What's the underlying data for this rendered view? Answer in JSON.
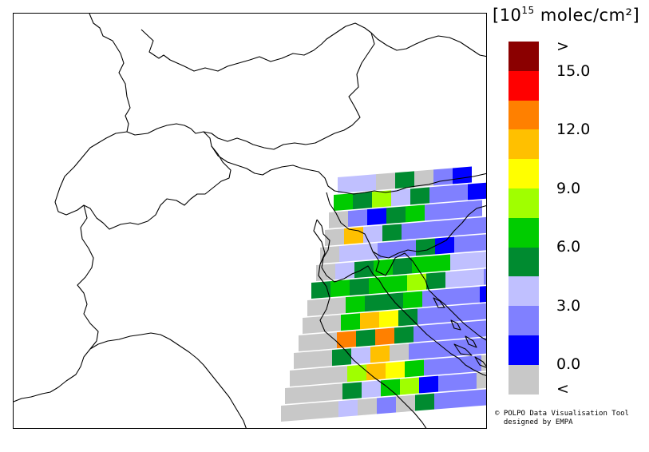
{
  "legend": {
    "unit_base": "[10",
    "unit_exp": "15",
    "unit_rest": " molec/cm²]",
    "labels": [
      ">",
      "15.0",
      "12.0",
      "9.0",
      "6.0",
      "3.0",
      "0.0",
      "<"
    ],
    "colors_top_to_bottom": [
      "#8b0000",
      "#ff0000",
      "#ff8000",
      "#ffc000",
      "#ffff00",
      "#a0ff00",
      "#00cc00",
      "#008b30",
      "#c0c0ff",
      "#8080ff",
      "#0000ff",
      "#c8c8c8"
    ]
  },
  "credit": {
    "line1": "© POLPO Data Visualisation Tool",
    "line2": "  designed by EMPA"
  },
  "map": {
    "region": "Alpine region / Northern Italy",
    "pixel_color_codes": {
      "G": "#c8c8c8",
      "B": "#0000ff",
      "b": "#8080ff",
      "l": "#c0c0ff",
      "D": "#008b30",
      "g": "#00cc00",
      "L": "#a0ff00",
      "Y": "#ffff00",
      "O": "#ffc000",
      "o": "#ff8000"
    },
    "swath_rows": [
      "llGDGbB",
      "gDLlDbbB",
      "GbBDgbbb",
      "GOlDbbbbb",
      "GllbbDBbbb",
      "GlDgDggllbb",
      "DgDggLDllbBB",
      "GGgDDgbbbBbB",
      "GGgOYDbbbbbB",
      "GGoDoDbbbbbb",
      "GGDlOGbbbbbb",
      "GGGLOYgbbbGG",
      "GGGDlgLBbbGG",
      "GGGlGbGDbbbG"
    ]
  }
}
